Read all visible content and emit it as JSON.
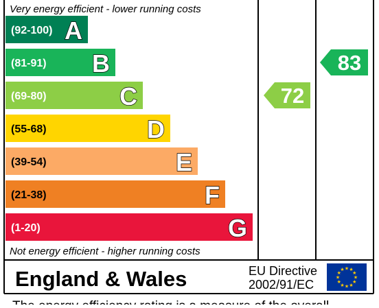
{
  "chart_data": {
    "type": "bar",
    "top_note": "Very energy efficient - lower running costs",
    "bottom_note": "Not energy efficient - higher running costs",
    "bands": [
      {
        "range": "(92-100)",
        "letter": "A",
        "color": "#008054"
      },
      {
        "range": "(81-91)",
        "letter": "B",
        "color": "#19b459"
      },
      {
        "range": "(69-80)",
        "letter": "C",
        "color": "#8dce46"
      },
      {
        "range": "(55-68)",
        "letter": "D",
        "color": "#ffd500"
      },
      {
        "range": "(39-54)",
        "letter": "E",
        "color": "#fcaa65"
      },
      {
        "range": "(21-38)",
        "letter": "F",
        "color": "#ef8023"
      },
      {
        "range": "(1-20)",
        "letter": "G",
        "color": "#e9153b"
      }
    ],
    "ratings": [
      {
        "column": "current",
        "value": 72,
        "band": "C",
        "color": "#8dce46"
      },
      {
        "column": "potential",
        "value": 83,
        "band": "B",
        "color": "#19b459"
      }
    ]
  },
  "footer": {
    "region": "England & Wales",
    "directive_line1": "EU Directive",
    "directive_line2": "2002/91/EC",
    "caption": "The energy efficiency rating is a measure of the overall"
  },
  "colors": {
    "eu_flag_blue": "#003399",
    "eu_flag_stars": "#ffcc00"
  }
}
